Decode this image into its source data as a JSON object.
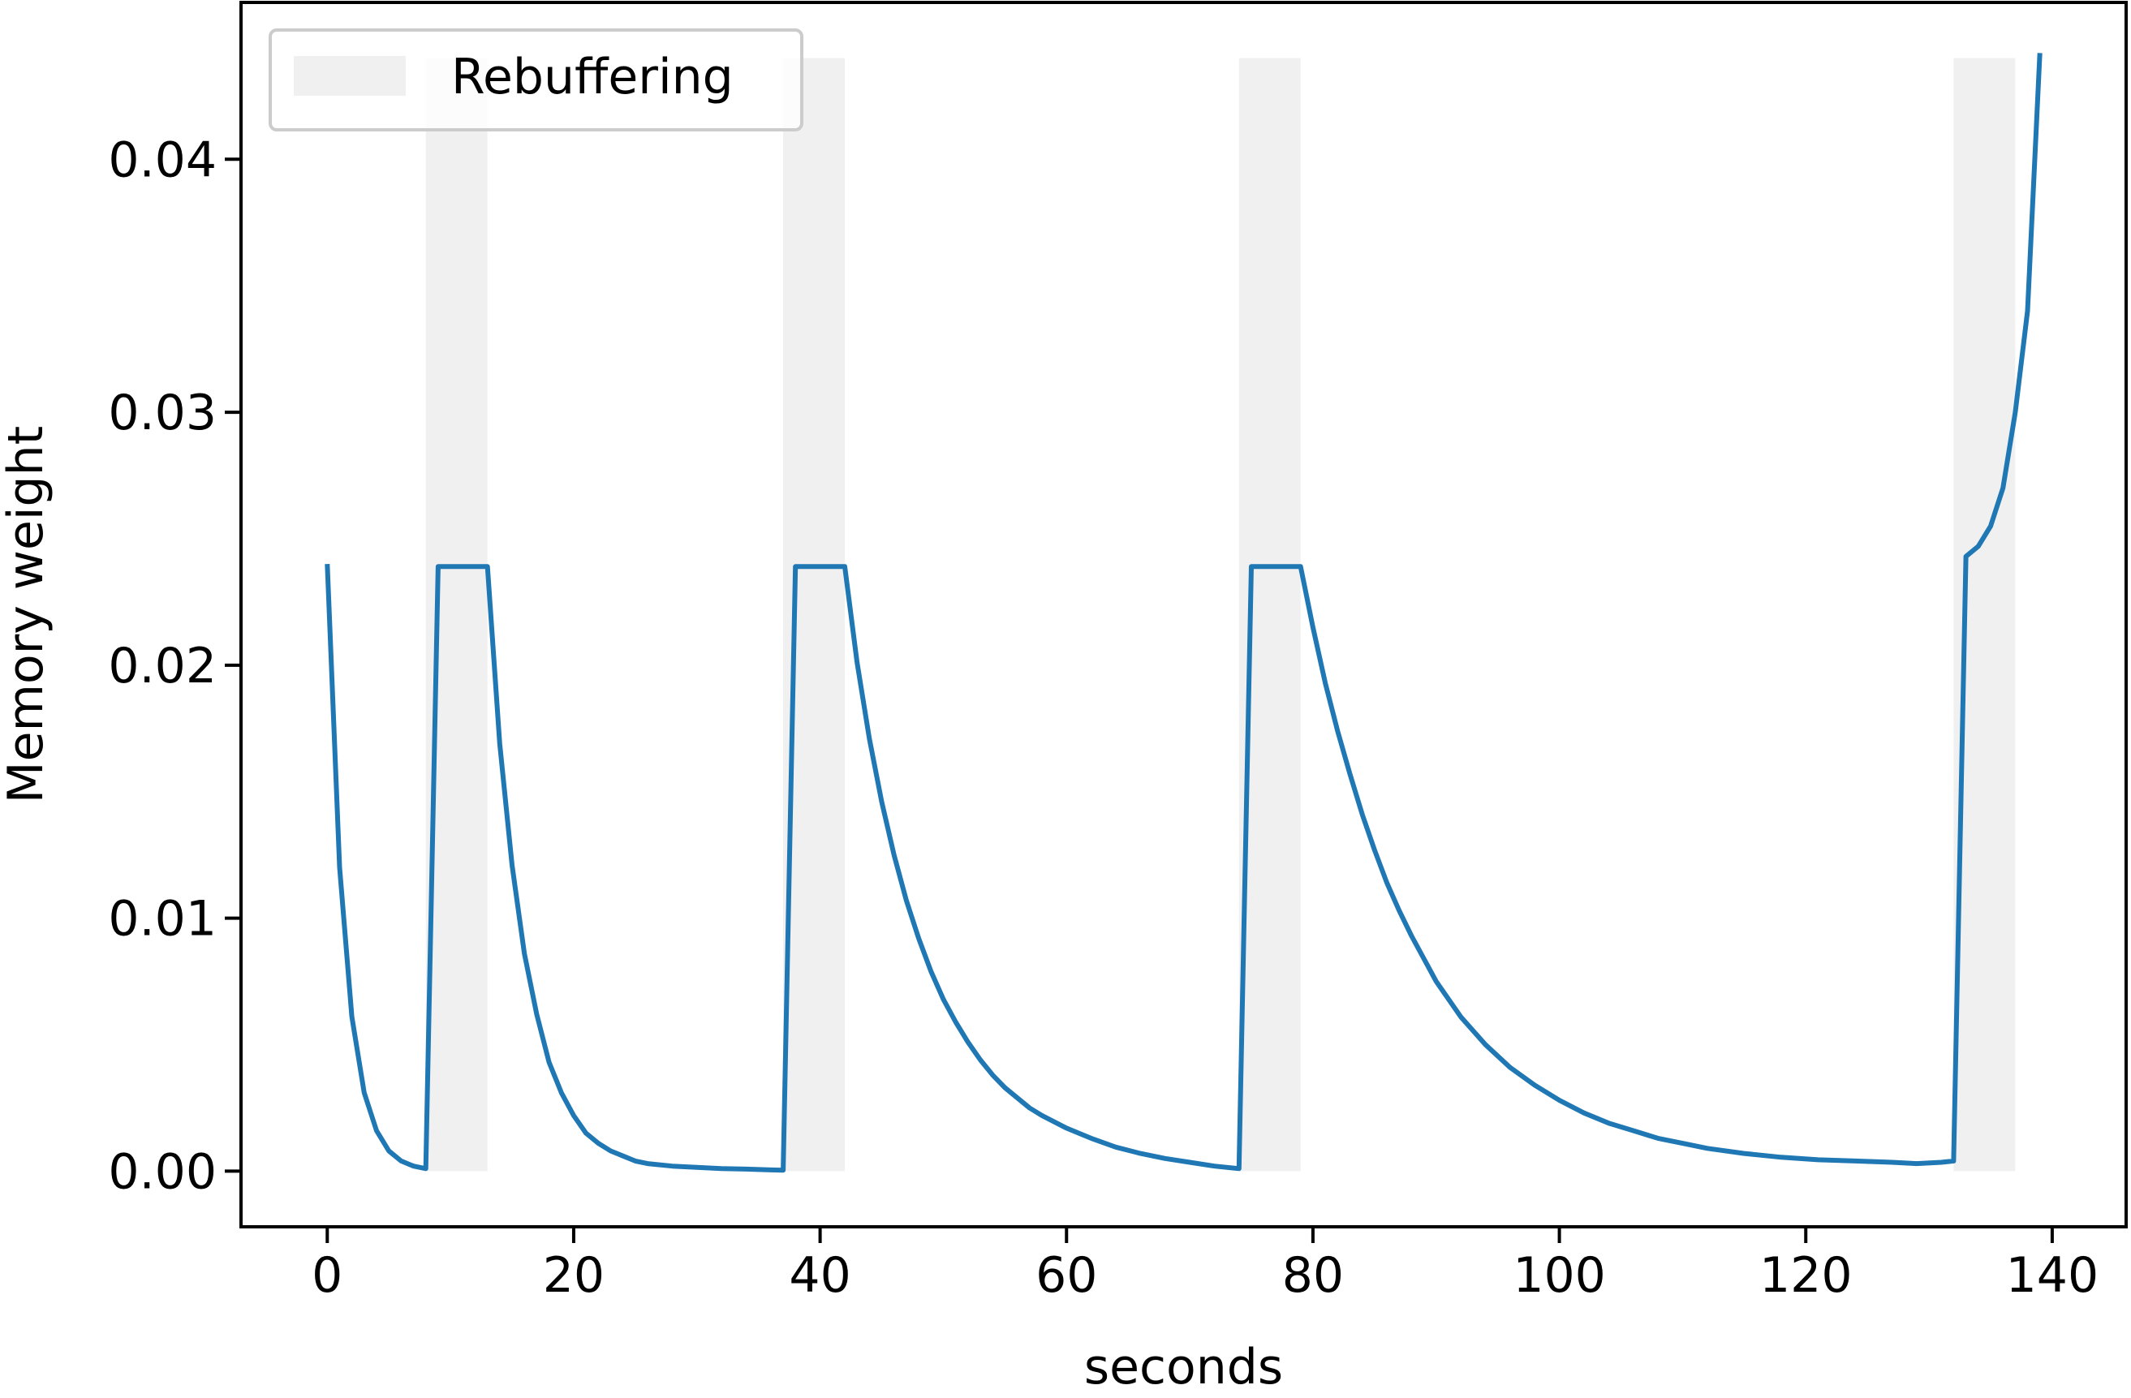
{
  "chart_data": {
    "type": "line",
    "title": "",
    "xlabel": "seconds",
    "ylabel": "Memory weight",
    "xlim": [
      -7,
      146
    ],
    "ylim": [
      -0.0022,
      0.0462
    ],
    "grid": false,
    "legend_placement": "top-left",
    "xticks": [
      {
        "value": 0,
        "label": "0"
      },
      {
        "value": 20,
        "label": "20"
      },
      {
        "value": 40,
        "label": "40"
      },
      {
        "value": 60,
        "label": "60"
      },
      {
        "value": 80,
        "label": "80"
      },
      {
        "value": 100,
        "label": "100"
      },
      {
        "value": 120,
        "label": "120"
      },
      {
        "value": 140,
        "label": "140"
      }
    ],
    "yticks": [
      {
        "value": 0.0,
        "label": "0.00"
      },
      {
        "value": 0.01,
        "label": "0.01"
      },
      {
        "value": 0.02,
        "label": "0.02"
      },
      {
        "value": 0.03,
        "label": "0.03"
      },
      {
        "value": 0.04,
        "label": "0.04"
      }
    ],
    "legend": [
      {
        "label": "Rebuffering",
        "color": "#f0f0f0",
        "kind": "patch"
      }
    ],
    "shaded_regions": {
      "name": "Rebuffering",
      "color": "#f0f0f0",
      "y_range": [
        0.0,
        0.044
      ],
      "intervals": [
        [
          8,
          13
        ],
        [
          37,
          42
        ],
        [
          74,
          79
        ],
        [
          132,
          137
        ]
      ]
    },
    "series": [
      {
        "color": "#1f77b4",
        "x": [
          0,
          1,
          2,
          3,
          4,
          5,
          6,
          7,
          8,
          9,
          10,
          11,
          12,
          13,
          14,
          15,
          16,
          17,
          18,
          19,
          20,
          21,
          22,
          23,
          24,
          25,
          26,
          28,
          30,
          32,
          34,
          36,
          37,
          38,
          39,
          40,
          41,
          42,
          43,
          44,
          45,
          46,
          47,
          48,
          49,
          50,
          51,
          52,
          53,
          54,
          55,
          56,
          57,
          58,
          60,
          62,
          64,
          66,
          68,
          70,
          72,
          74,
          75,
          76,
          77,
          78,
          79,
          80,
          81,
          82,
          83,
          84,
          85,
          86,
          87,
          88,
          89,
          90,
          92,
          94,
          96,
          98,
          100,
          102,
          104,
          106,
          108,
          110,
          112,
          115,
          118,
          121,
          124,
          127,
          129,
          131,
          132,
          133,
          134,
          135,
          136,
          137,
          138,
          139
        ],
        "y": [
          0.024,
          0.012,
          0.0061,
          0.0031,
          0.0016,
          0.0008,
          0.0004,
          0.0002,
          0.0001,
          0.0239,
          0.0239,
          0.0239,
          0.0239,
          0.0239,
          0.0169,
          0.0121,
          0.0086,
          0.0062,
          0.0043,
          0.0031,
          0.0022,
          0.0015,
          0.0011,
          0.0008,
          0.0006,
          0.0004,
          0.0003,
          0.0002,
          0.00015,
          0.0001,
          8e-05,
          5e-05,
          4e-05,
          0.0239,
          0.0239,
          0.0239,
          0.0239,
          0.0239,
          0.0201,
          0.0171,
          0.0146,
          0.0125,
          0.0107,
          0.0092,
          0.0079,
          0.0068,
          0.0059,
          0.0051,
          0.0044,
          0.0038,
          0.0033,
          0.0029,
          0.0025,
          0.0022,
          0.0017,
          0.0013,
          0.00095,
          0.0007,
          0.0005,
          0.00035,
          0.0002,
          0.0001,
          0.0239,
          0.0239,
          0.0239,
          0.0239,
          0.0239,
          0.0215,
          0.0193,
          0.0174,
          0.0157,
          0.0141,
          0.0127,
          0.0114,
          0.0103,
          0.0093,
          0.0084,
          0.0075,
          0.0061,
          0.005,
          0.0041,
          0.0034,
          0.0028,
          0.0023,
          0.0019,
          0.0016,
          0.0013,
          0.0011,
          0.0009,
          0.0007,
          0.00055,
          0.00045,
          0.0004,
          0.00035,
          0.0003,
          0.00035,
          0.0004,
          0.0243,
          0.0247,
          0.0255,
          0.027,
          0.03,
          0.034,
          0.0442
        ]
      }
    ]
  }
}
